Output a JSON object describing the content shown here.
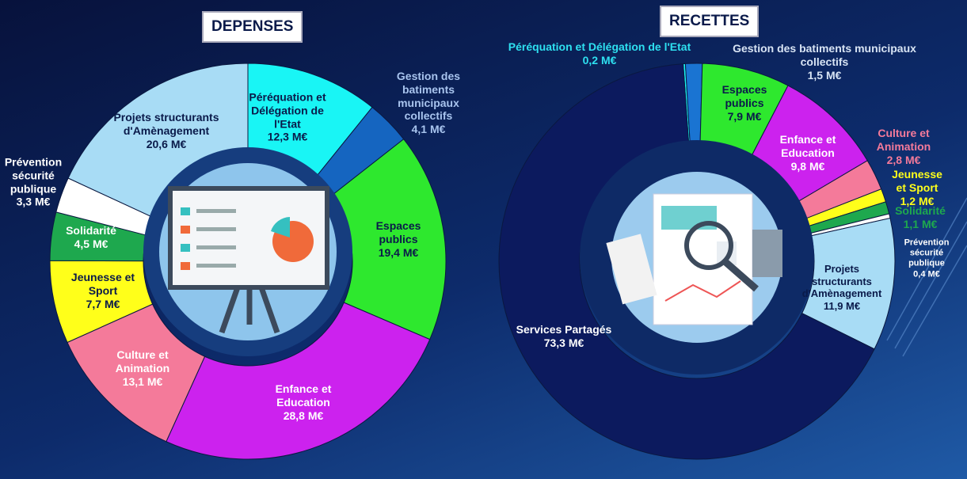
{
  "chart_data": [
    {
      "type": "pie",
      "title": "DEPENSES",
      "donut": true,
      "categories": [
        "Péréquation et Délégation de l'Etat",
        "Gestion des batiments municipaux collectifs",
        "Espaces publics",
        "Enfance et Education",
        "Culture et Animation",
        "Jeunesse et Sport",
        "Solidarité",
        "Prévention sécurité publique",
        "Projets structurants d'Amènagement"
      ],
      "values": [
        12.3,
        4.1,
        19.4,
        28.8,
        13.1,
        7.7,
        4.5,
        3.3,
        20.6
      ],
      "value_labels": [
        "12,3 M€",
        "4,1 M€",
        "19,4 M€",
        "28,8 M€",
        "13,1 M€",
        "7,7 M€",
        "4,5 M€",
        "3,3 M€",
        "20,6 M€"
      ],
      "colors": [
        "#19f5f5",
        "#1565c0",
        "#2ee82e",
        "#cc22ee",
        "#f47a9a",
        "#ffff1a",
        "#1ea84e",
        "#ffffff",
        "#a8dcf5"
      ]
    },
    {
      "type": "pie",
      "title": "RECETTES",
      "donut": true,
      "categories": [
        "Péréquation et Délégation de l'Etat",
        "Gestion des batiments municipaux collectifs",
        "Espaces publics",
        "Enfance et Education",
        "Culture et Animation",
        "Jeunesse et Sport",
        "Solidarité",
        "Prévention sécurité publique",
        "Projets structurants d'Amènagement",
        "Services Partagés"
      ],
      "values": [
        0.2,
        1.5,
        7.9,
        9.8,
        2.8,
        1.2,
        1.1,
        0.4,
        11.9,
        73.3
      ],
      "value_labels": [
        "0,2 M€",
        "1,5 M€",
        "7,9 M€",
        "9,8 M€",
        "2,8 M€",
        "1,2 M€",
        "1,1 M€",
        "0,4 M€",
        "11,9 M€",
        "73,3 M€"
      ],
      "colors": [
        "#19f5f5",
        "#1a74d2",
        "#2ee82e",
        "#cc22ee",
        "#f47a9a",
        "#ffff1a",
        "#1ea84e",
        "#ffffff",
        "#a8dcf5",
        "#0c1a5e"
      ]
    }
  ]
}
